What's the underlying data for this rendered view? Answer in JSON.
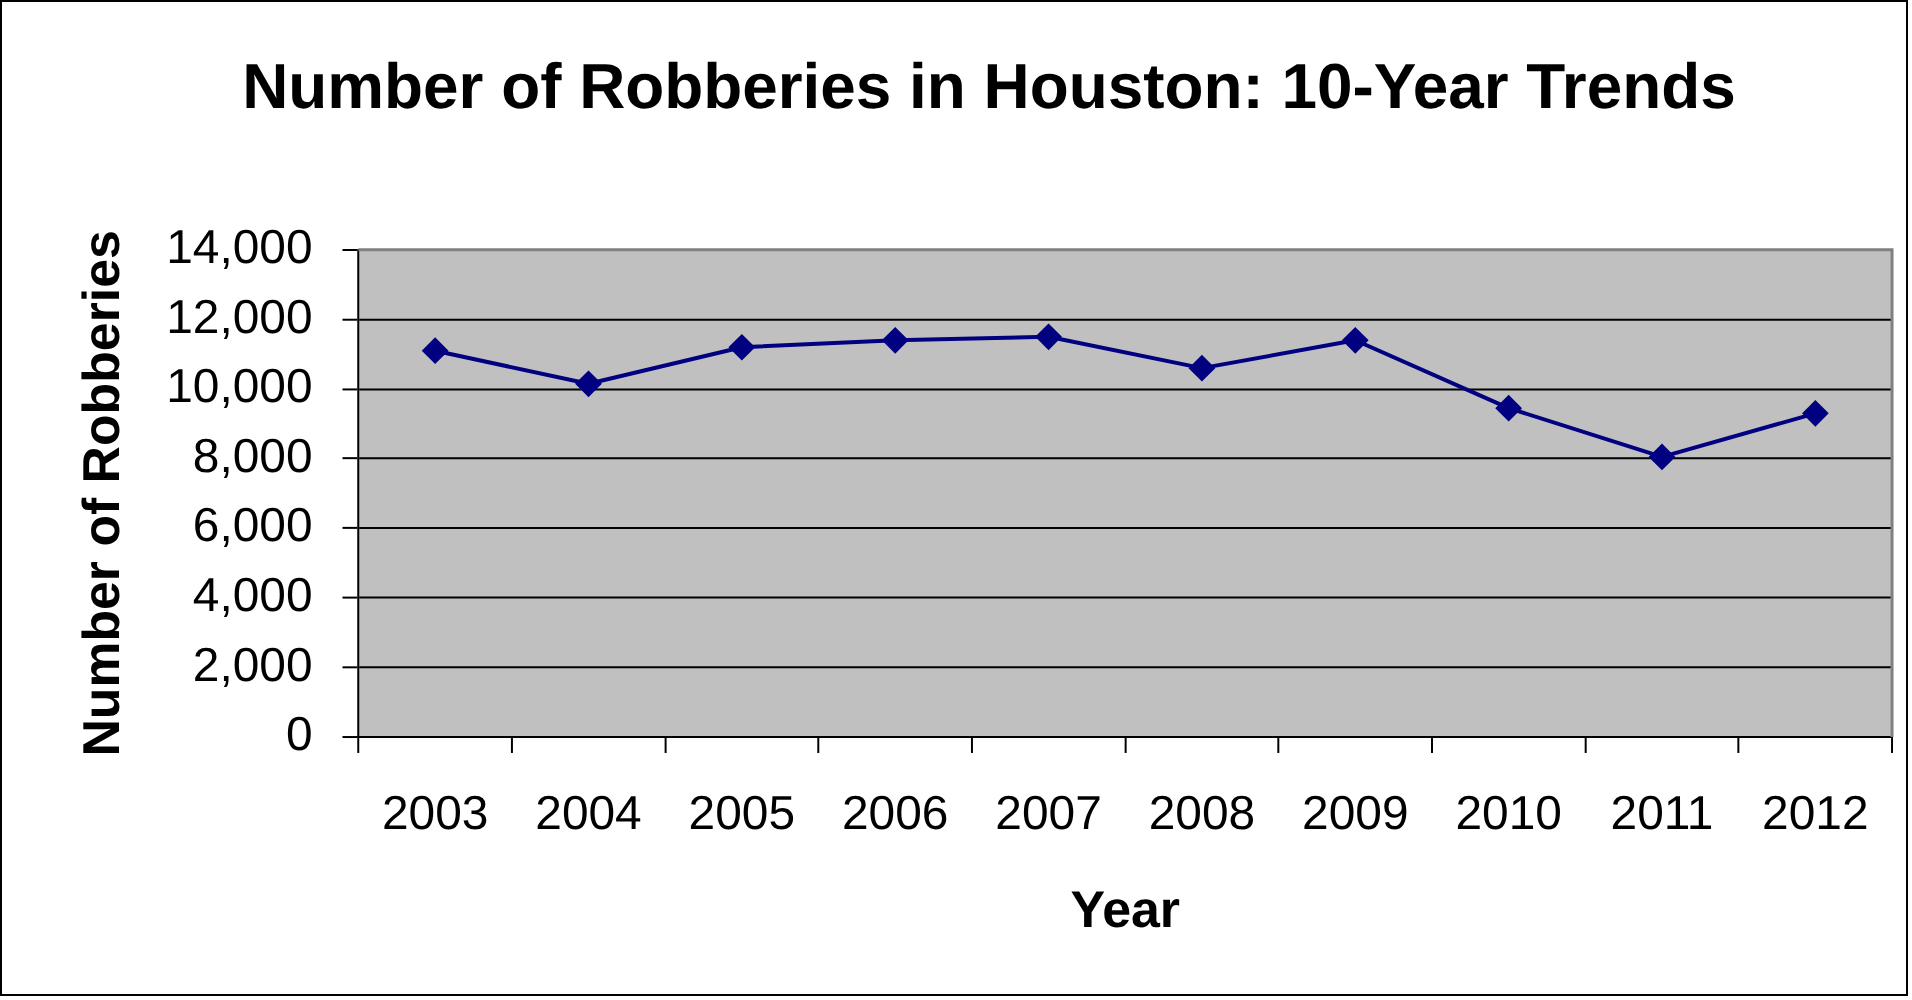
{
  "chart_data": {
    "type": "line",
    "title": "Number of Robberies in Houston: 10-Year Trends",
    "xlabel": "Year",
    "ylabel": "Number of Robberies",
    "categories": [
      "2003",
      "2004",
      "2005",
      "2006",
      "2007",
      "2008",
      "2009",
      "2010",
      "2011",
      "2012"
    ],
    "series": [
      {
        "color": "#000080",
        "values": [
          11100,
          10150,
          11200,
          11400,
          11500,
          10600,
          11400,
          9450,
          8050,
          9300
        ]
      }
    ],
    "ylim": [
      0,
      14000
    ],
    "yticks": [
      0,
      {
        "value": 2000,
        "label": "2,000"
      },
      {
        "value": 4000,
        "label": "4,000"
      },
      {
        "value": 6000,
        "label": "6,000"
      },
      {
        "value": 8000,
        "label": "8,000"
      },
      {
        "value": 10000,
        "label": "10,000"
      },
      {
        "value": 12000,
        "label": "12,000"
      },
      {
        "value": 14000,
        "label": "14,000"
      }
    ],
    "grid": "y",
    "legend": false,
    "marker": "diamond",
    "line_style": "solid"
  }
}
